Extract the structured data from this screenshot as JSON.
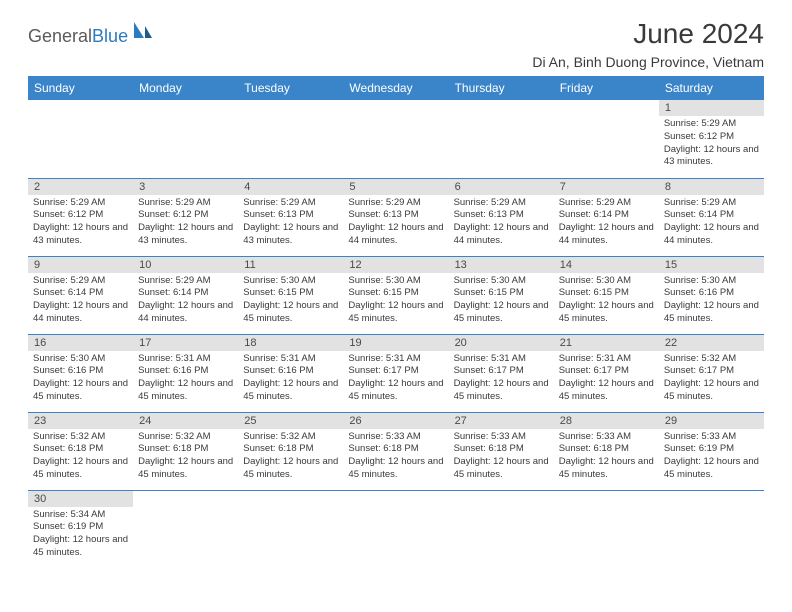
{
  "logo": {
    "text1": "General",
    "text2": "Blue"
  },
  "title": "June 2024",
  "location": "Di An, Binh Duong Province, Vietnam",
  "colors": {
    "header_bg": "#3a85c9",
    "header_text": "#ffffff",
    "daynum_bg": "#e2e2e2",
    "border": "#3a85c9",
    "logo_gray": "#5a5a5a",
    "logo_blue": "#2b7bc0"
  },
  "dayHeaders": [
    "Sunday",
    "Monday",
    "Tuesday",
    "Wednesday",
    "Thursday",
    "Friday",
    "Saturday"
  ],
  "weeks": [
    [
      null,
      null,
      null,
      null,
      null,
      null,
      {
        "n": 1,
        "sr": "5:29 AM",
        "ss": "6:12 PM",
        "dl": "12 hours and 43 minutes."
      }
    ],
    [
      {
        "n": 2,
        "sr": "5:29 AM",
        "ss": "6:12 PM",
        "dl": "12 hours and 43 minutes."
      },
      {
        "n": 3,
        "sr": "5:29 AM",
        "ss": "6:12 PM",
        "dl": "12 hours and 43 minutes."
      },
      {
        "n": 4,
        "sr": "5:29 AM",
        "ss": "6:13 PM",
        "dl": "12 hours and 43 minutes."
      },
      {
        "n": 5,
        "sr": "5:29 AM",
        "ss": "6:13 PM",
        "dl": "12 hours and 44 minutes."
      },
      {
        "n": 6,
        "sr": "5:29 AM",
        "ss": "6:13 PM",
        "dl": "12 hours and 44 minutes."
      },
      {
        "n": 7,
        "sr": "5:29 AM",
        "ss": "6:14 PM",
        "dl": "12 hours and 44 minutes."
      },
      {
        "n": 8,
        "sr": "5:29 AM",
        "ss": "6:14 PM",
        "dl": "12 hours and 44 minutes."
      }
    ],
    [
      {
        "n": 9,
        "sr": "5:29 AM",
        "ss": "6:14 PM",
        "dl": "12 hours and 44 minutes."
      },
      {
        "n": 10,
        "sr": "5:29 AM",
        "ss": "6:14 PM",
        "dl": "12 hours and 44 minutes."
      },
      {
        "n": 11,
        "sr": "5:30 AM",
        "ss": "6:15 PM",
        "dl": "12 hours and 45 minutes."
      },
      {
        "n": 12,
        "sr": "5:30 AM",
        "ss": "6:15 PM",
        "dl": "12 hours and 45 minutes."
      },
      {
        "n": 13,
        "sr": "5:30 AM",
        "ss": "6:15 PM",
        "dl": "12 hours and 45 minutes."
      },
      {
        "n": 14,
        "sr": "5:30 AM",
        "ss": "6:15 PM",
        "dl": "12 hours and 45 minutes."
      },
      {
        "n": 15,
        "sr": "5:30 AM",
        "ss": "6:16 PM",
        "dl": "12 hours and 45 minutes."
      }
    ],
    [
      {
        "n": 16,
        "sr": "5:30 AM",
        "ss": "6:16 PM",
        "dl": "12 hours and 45 minutes."
      },
      {
        "n": 17,
        "sr": "5:31 AM",
        "ss": "6:16 PM",
        "dl": "12 hours and 45 minutes."
      },
      {
        "n": 18,
        "sr": "5:31 AM",
        "ss": "6:16 PM",
        "dl": "12 hours and 45 minutes."
      },
      {
        "n": 19,
        "sr": "5:31 AM",
        "ss": "6:17 PM",
        "dl": "12 hours and 45 minutes."
      },
      {
        "n": 20,
        "sr": "5:31 AM",
        "ss": "6:17 PM",
        "dl": "12 hours and 45 minutes."
      },
      {
        "n": 21,
        "sr": "5:31 AM",
        "ss": "6:17 PM",
        "dl": "12 hours and 45 minutes."
      },
      {
        "n": 22,
        "sr": "5:32 AM",
        "ss": "6:17 PM",
        "dl": "12 hours and 45 minutes."
      }
    ],
    [
      {
        "n": 23,
        "sr": "5:32 AM",
        "ss": "6:18 PM",
        "dl": "12 hours and 45 minutes."
      },
      {
        "n": 24,
        "sr": "5:32 AM",
        "ss": "6:18 PM",
        "dl": "12 hours and 45 minutes."
      },
      {
        "n": 25,
        "sr": "5:32 AM",
        "ss": "6:18 PM",
        "dl": "12 hours and 45 minutes."
      },
      {
        "n": 26,
        "sr": "5:33 AM",
        "ss": "6:18 PM",
        "dl": "12 hours and 45 minutes."
      },
      {
        "n": 27,
        "sr": "5:33 AM",
        "ss": "6:18 PM",
        "dl": "12 hours and 45 minutes."
      },
      {
        "n": 28,
        "sr": "5:33 AM",
        "ss": "6:18 PM",
        "dl": "12 hours and 45 minutes."
      },
      {
        "n": 29,
        "sr": "5:33 AM",
        "ss": "6:19 PM",
        "dl": "12 hours and 45 minutes."
      }
    ],
    [
      {
        "n": 30,
        "sr": "5:34 AM",
        "ss": "6:19 PM",
        "dl": "12 hours and 45 minutes."
      },
      null,
      null,
      null,
      null,
      null,
      null
    ]
  ],
  "labels": {
    "sunrise": "Sunrise: ",
    "sunset": "Sunset: ",
    "daylight": "Daylight: "
  }
}
